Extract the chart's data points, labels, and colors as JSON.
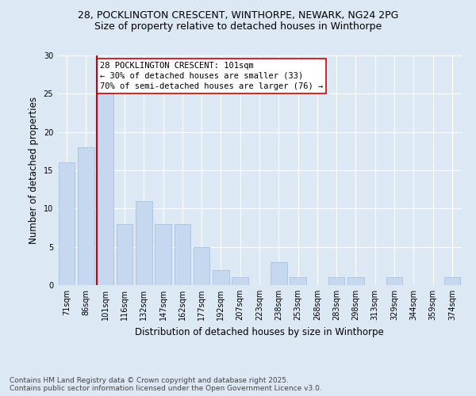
{
  "title1": "28, POCKLINGTON CRESCENT, WINTHORPE, NEWARK, NG24 2PG",
  "title2": "Size of property relative to detached houses in Winthorpe",
  "xlabel": "Distribution of detached houses by size in Winthorpe",
  "ylabel": "Number of detached properties",
  "categories": [
    "71sqm",
    "86sqm",
    "101sqm",
    "116sqm",
    "132sqm",
    "147sqm",
    "162sqm",
    "177sqm",
    "192sqm",
    "207sqm",
    "223sqm",
    "238sqm",
    "253sqm",
    "268sqm",
    "283sqm",
    "298sqm",
    "313sqm",
    "329sqm",
    "344sqm",
    "359sqm",
    "374sqm"
  ],
  "values": [
    16,
    18,
    25,
    8,
    11,
    8,
    8,
    5,
    2,
    1,
    0,
    3,
    1,
    0,
    1,
    1,
    0,
    1,
    0,
    0,
    1
  ],
  "bar_color": "#c5d8f0",
  "bar_edgecolor": "#a0bcd8",
  "highlight_index": 2,
  "highlight_line_color": "#cc0000",
  "annotation_box_color": "#ffffff",
  "annotation_border_color": "#cc0000",
  "annotation_text_line1": "28 POCKLINGTON CRESCENT: 101sqm",
  "annotation_text_line2": "← 30% of detached houses are smaller (33)",
  "annotation_text_line3": "70% of semi-detached houses are larger (76) →",
  "ylim": [
    0,
    30
  ],
  "yticks": [
    0,
    5,
    10,
    15,
    20,
    25,
    30
  ],
  "footer1": "Contains HM Land Registry data © Crown copyright and database right 2025.",
  "footer2": "Contains public sector information licensed under the Open Government Licence v3.0.",
  "background_color": "#dde8f5",
  "plot_bg_color": "#dde8f5",
  "grid_color": "#ffffff",
  "title1_fontsize": 9,
  "title2_fontsize": 9,
  "axis_label_fontsize": 8.5,
  "tick_fontsize": 7,
  "annotation_fontsize": 7.5,
  "footer_fontsize": 6.5
}
